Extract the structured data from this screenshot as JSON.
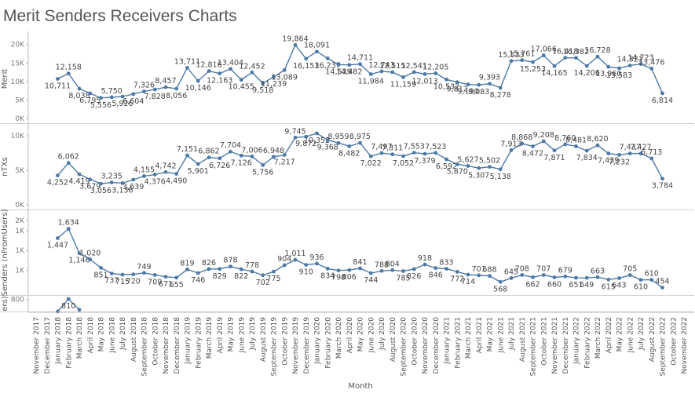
{
  "title": "Merit Senders Receivers Charts",
  "chart_data": {
    "type": "line",
    "xlabel": "Month",
    "grid": false,
    "line_color": "#4e79a7",
    "categories": [
      "November 2017",
      "December 2017",
      "January 2018",
      "February 2018",
      "March 2018",
      "April 2018",
      "May 2018",
      "June 2018",
      "July 2018",
      "August 2018",
      "September 2018",
      "October 2018",
      "November 2018",
      "December 2018",
      "January 2019",
      "February 2019",
      "March 2019",
      "April 2019",
      "May 2019",
      "June 2019",
      "July 2019",
      "August 2019",
      "September 2019",
      "October 2019",
      "November 2019",
      "December 2019",
      "January 2020",
      "February 2020",
      "March 2020",
      "April 2020",
      "May 2020",
      "June 2020",
      "July 2020",
      "August 2020",
      "September 2020",
      "October 2020",
      "November 2020",
      "December 2020",
      "January 2021",
      "February 2021",
      "March 2021",
      "April 2021",
      "May 2021",
      "June 2021",
      "July 2021",
      "August 2021",
      "September 2021",
      "October 2021",
      "November 2021",
      "December 2021",
      "January 2022",
      "February 2022",
      "March 2022",
      "April 2022",
      "May 2022",
      "June 2022",
      "July 2022",
      "August 2022",
      "September 2022",
      "October 2022",
      "November 2022"
    ],
    "panels": [
      {
        "ylabel": "Merit",
        "ylim": [
          0,
          21000
        ],
        "ticks": [
          {
            "v": 0,
            "t": "0K"
          },
          {
            "v": 5000,
            "t": "5K"
          },
          {
            "v": 10000,
            "t": "10K"
          },
          {
            "v": 15000,
            "t": "15K"
          },
          {
            "v": 20000,
            "t": "20K"
          }
        ],
        "values": [
          null,
          null,
          10711,
          12158,
          8038,
          6795,
          5556,
          5750,
          5926,
          6604,
          7326,
          7828,
          8457,
          8056,
          13711,
          10146,
          12816,
          12163,
          13404,
          10455,
          12452,
          9518,
          11239,
          13089,
          19864,
          16153,
          18091,
          16237,
          14539,
          14482,
          14711,
          11984,
          12743,
          12515,
          11159,
          12541,
          12013,
          12205,
          10532,
          9812,
          9190,
          9083,
          9393,
          8278,
          15533,
          15761,
          15253,
          17066,
          14165,
          16418,
          16382,
          14206,
          16728,
          13960,
          13583,
          14321,
          14723,
          13476,
          6814,
          null,
          null
        ],
        "labels": [
          "",
          "",
          "10,711",
          "12,158",
          "8,038",
          "6,795",
          "5,556",
          "5,750",
          "5,926",
          "6,604",
          "7,326",
          "7,828",
          "8,457",
          "8,056",
          "13,711",
          "10,146",
          "12,816",
          "12,163",
          "13,404",
          "10,455",
          "12,452",
          "9,518",
          "11,239",
          "13,089",
          "19,864",
          "16,153",
          "18,091",
          "16,237",
          "14,539",
          "14,482",
          "14,711",
          "11,984",
          "12,743",
          "12,515",
          "11,159",
          "12,541",
          "12,013",
          "12,205",
          "10,532",
          "9,812",
          "9,190",
          "9,083",
          "9,393",
          "8,278",
          "15,533",
          "15,761",
          "15,253",
          "17,066",
          "14,165",
          "16,418",
          "16,382",
          "14,206",
          "16,728",
          "13,960",
          "13,583",
          "14,321",
          "14,723",
          "13,476",
          "6,814",
          "",
          ""
        ]
      },
      {
        "ylabel": "nTXs",
        "ylim": [
          0,
          10800
        ],
        "ticks": [
          {
            "v": 0,
            "t": "0K"
          },
          {
            "v": 5000,
            "t": "5K"
          },
          {
            "v": 10000,
            "t": "10K"
          }
        ],
        "values": [
          null,
          null,
          4252,
          6062,
          4419,
          3679,
          3056,
          3235,
          3136,
          3639,
          4155,
          4376,
          4742,
          4490,
          7151,
          5901,
          6862,
          6726,
          7704,
          7126,
          7006,
          5756,
          6948,
          7217,
          9745,
          9872,
          10352,
          9368,
          8959,
          8482,
          8975,
          7022,
          7497,
          7311,
          7052,
          7553,
          7379,
          7523,
          6592,
          5870,
          5627,
          5307,
          5502,
          5138,
          7913,
          8868,
          8472,
          9208,
          7871,
          8760,
          8481,
          7834,
          8620,
          7439,
          7232,
          7437,
          7427,
          6713,
          3784,
          null,
          null
        ],
        "labels": [
          "",
          "",
          "4,252",
          "6,062",
          "4,419",
          "3,679",
          "3,056",
          "3,235",
          "3,136",
          "3,639",
          "4,155",
          "4,376",
          "4,742",
          "4,490",
          "7,151",
          "5,901",
          "6,862",
          "6,726",
          "7,704",
          "7,126",
          "7,006",
          "5,756",
          "6,948",
          "7,217",
          "9,745",
          "9,872",
          "10,352",
          "9,368",
          "8,959",
          "8,482",
          "8,975",
          "7,022",
          "7,497",
          "7,311",
          "7,052",
          "7,553",
          "7,379",
          "7,523",
          "6,592",
          "5,870",
          "5,627",
          "5,307",
          "5,502",
          "5,138",
          "7,913",
          "8,868",
          "8,472",
          "9,208",
          "7,871",
          "8,760",
          "8,481",
          "7,834",
          "8,620",
          "7,439",
          "7,232",
          "7,437",
          "7,427",
          "6,713",
          "3,784",
          "",
          ""
        ]
      },
      {
        "ylabel": "Senders (nFromUsers)",
        "ylim": [
          400,
          1880
        ],
        "ticks": [
          {
            "v": 800,
            "t": "1K"
          },
          {
            "v": 1200,
            "t": "1K"
          },
          {
            "v": 1600,
            "t": "1K"
          },
          {
            "v": 1800,
            "t": "2K"
          }
        ],
        "values": [
          null,
          null,
          1447,
          1634,
          1146,
          1020,
          851,
          737,
          715,
          720,
          749,
          709,
          671,
          655,
          819,
          746,
          826,
          829,
          878,
          822,
          778,
          702,
          775,
          904,
          1011,
          910,
          936,
          834,
          798,
          806,
          841,
          744,
          788,
          804,
          785,
          826,
          918,
          846,
          833,
          772,
          714,
          701,
          688,
          568,
          645,
          708,
          662,
          707,
          660,
          679,
          651,
          649,
          663,
          615,
          643,
          705,
          610,
          610,
          454,
          null,
          null
        ],
        "labels": [
          "",
          "",
          "1,447",
          "1,634",
          "1,146",
          "1,020",
          "851",
          "737",
          "715",
          "720",
          "749",
          "709",
          "671",
          "655",
          "819",
          "746",
          "826",
          "829",
          "878",
          "822",
          "778",
          "702",
          "775",
          "904",
          "1,011",
          "910",
          "936",
          "834",
          "798",
          "806",
          "841",
          "744",
          "788",
          "804",
          "785",
          "826",
          "918",
          "846",
          "833",
          "772",
          "714",
          "701",
          "688",
          "568",
          "645",
          "708",
          "662",
          "707",
          "660",
          "679",
          "651",
          "649",
          "663",
          "615",
          "643",
          "705",
          "610",
          "610",
          "454",
          "",
          ""
        ]
      },
      {
        "ylabel": "ers)",
        "ylim": [
          520,
          830
        ],
        "ticks": [
          {
            "v": 800,
            "t": "800"
          }
        ],
        "values": [
          null,
          null,
          520,
          810,
          560,
          null,
          null,
          null,
          null,
          null,
          null,
          null,
          null,
          null,
          null,
          null,
          null,
          null,
          null,
          null,
          null,
          null,
          null,
          null,
          null,
          null,
          null,
          null,
          null,
          null,
          null,
          null,
          null,
          null,
          null,
          null,
          null,
          null,
          null,
          null,
          null,
          null,
          null,
          null,
          null,
          null,
          null,
          null,
          null,
          null,
          null,
          null,
          null,
          null,
          null,
          null,
          null,
          null,
          null,
          null,
          null
        ],
        "labels": [
          "",
          "",
          "",
          "810",
          "",
          "",
          "",
          "",
          "",
          "",
          "",
          "",
          "",
          "",
          "",
          "",
          "",
          "",
          "",
          "",
          "",
          "",
          "",
          "",
          "",
          "",
          "",
          "",
          "",
          "",
          "",
          "",
          "",
          "",
          "",
          "",
          "",
          "",
          "",
          "",
          "",
          "",
          "",
          "",
          "",
          "",
          "",
          "",
          "",
          "",
          "",
          "",
          "",
          "",
          "",
          "",
          "",
          "",
          "",
          "",
          ""
        ]
      }
    ]
  }
}
